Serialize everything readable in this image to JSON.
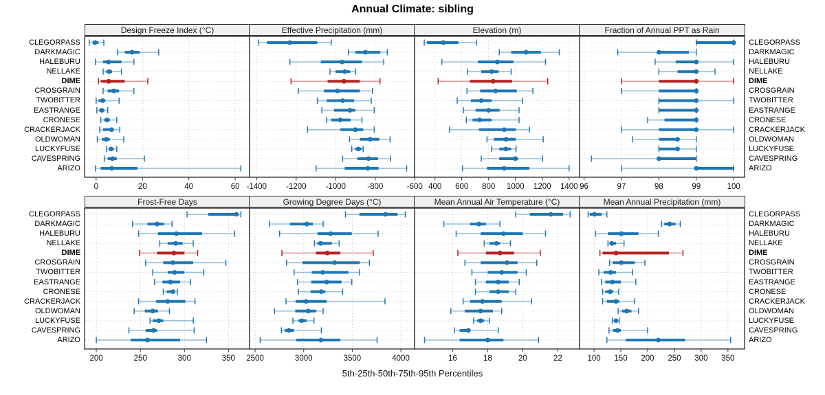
{
  "title": "Annual Climate: sibling",
  "caption": "5th-25th-50th-75th-95th Percentiles",
  "colors": {
    "series": "#1f77b4",
    "series_light": "rgba(31,119,180,0.42)",
    "highlight": "#b22222",
    "highlight_light": "rgba(178,34,34,0.42)",
    "header_bg": "#f0f0f0",
    "panel_border": "#2a2a2a",
    "grid": "#c4c4c4",
    "tick_text": "#111111"
  },
  "chart_data": {
    "type": "dot-whisker",
    "percentile_levels": [
      5,
      25,
      50,
      75,
      95
    ],
    "highlight_site": "DIME",
    "sites": [
      "CLEGORPASS",
      "DARKMAGIC",
      "HALEBURU",
      "NELLAKE",
      "DIME",
      "CROSGRAIN",
      "TWOBITTER",
      "EASTRANGE",
      "CRONESE",
      "CRACKERJACK",
      "OLDWOMAN",
      "LUCKYFUSE",
      "CAVESPRING",
      "ARIZO"
    ],
    "panels": [
      {
        "title": "Design Freeze Index (°C)",
        "ticks": [
          0,
          20,
          40,
          60
        ],
        "xlim": [
          -5,
          66.2
        ],
        "values": [
          [
            -3,
            -1.5,
            -0.5,
            1,
            3.3
          ],
          [
            9.2,
            12.4,
            15.5,
            18.8,
            27
          ],
          [
            -0.3,
            3,
            5.3,
            10.9,
            16.3
          ],
          [
            3,
            4.3,
            5.6,
            6.9,
            10.9
          ],
          [
            1,
            2,
            5.4,
            12.4,
            22.3
          ],
          [
            3,
            5,
            7.6,
            9.9,
            16.3
          ],
          [
            0,
            1,
            2.8,
            4,
            9.9
          ],
          [
            0.3,
            1.3,
            2.5,
            3.5,
            5
          ],
          [
            2,
            3.5,
            4.7,
            5.9,
            8.9
          ],
          [
            1.5,
            3,
            6.7,
            7.4,
            10.2
          ],
          [
            0.5,
            2.5,
            4.3,
            5.9,
            11.9
          ],
          [
            4.5,
            5.4,
            6.4,
            7.6,
            8.9
          ],
          [
            3.5,
            5,
            7.1,
            8.9,
            20.8
          ],
          [
            -0.3,
            2,
            6.7,
            17.8,
            62.4
          ]
        ]
      },
      {
        "title": "Effective Precipitation (mm)",
        "ticks": [
          -1400,
          -1200,
          -1000,
          -800,
          -600
        ],
        "xlim": [
          -1436,
          -601
        ],
        "values": [
          [
            -1390,
            -1348,
            -1232,
            -1093,
            -1023
          ],
          [
            -936,
            -901,
            -850,
            -774,
            -739
          ],
          [
            -1232,
            -1075,
            -968,
            -867,
            -757
          ],
          [
            -1029,
            -1000,
            -954,
            -927,
            -899
          ],
          [
            -1226,
            -1041,
            -958,
            -878,
            -776
          ],
          [
            -1189,
            -1060,
            -991,
            -878,
            -814
          ],
          [
            -1093,
            -1046,
            -965,
            -907,
            -820
          ],
          [
            -1070,
            -1008,
            -928,
            -901,
            -805
          ],
          [
            -1046,
            -1023,
            -977,
            -925,
            -867
          ],
          [
            -1143,
            -977,
            -901,
            -861,
            -805
          ],
          [
            -930,
            -878,
            -826,
            -780,
            -725
          ],
          [
            -919,
            -901,
            -886,
            -869,
            -861
          ],
          [
            -965,
            -890,
            -834,
            -786,
            -722
          ],
          [
            -1099,
            -954,
            -838,
            -783,
            -641
          ]
        ]
      },
      {
        "title": "Elevation (m)",
        "ticks": [
          400,
          600,
          800,
          1000,
          1200,
          1400
        ],
        "xlim": [
          248,
          1478
        ],
        "values": [
          [
            320,
            340,
            463,
            575,
            710
          ],
          [
            880,
            968,
            1079,
            1190,
            1327
          ],
          [
            451,
            720,
            865,
            985,
            1224
          ],
          [
            643,
            745,
            822,
            874,
            968
          ],
          [
            424,
            660,
            834,
            976,
            1241
          ],
          [
            639,
            737,
            851,
            1010,
            1130
          ],
          [
            566,
            668,
            745,
            822,
            1053
          ],
          [
            612,
            703,
            800,
            882,
            1027
          ],
          [
            634,
            680,
            733,
            822,
            1027
          ],
          [
            509,
            728,
            916,
            1002,
            1104
          ],
          [
            788,
            839,
            930,
            1002,
            1207
          ],
          [
            822,
            879,
            928,
            968,
            1005
          ],
          [
            745,
            879,
            998,
            1019,
            1203
          ],
          [
            605,
            788,
            916,
            1104,
            1400
          ]
        ]
      },
      {
        "title": "Fraction of Annual PPT as Rain",
        "ticks": [
          96,
          97,
          98,
          99,
          100
        ],
        "xlim": [
          95.88,
          100.29
        ],
        "values": [
          [
            99,
            99,
            100,
            100,
            100
          ],
          [
            96.9,
            98,
            98,
            98.8,
            99
          ],
          [
            97.9,
            98.45,
            99,
            99,
            100
          ],
          [
            98,
            98.5,
            99,
            99,
            99.5
          ],
          [
            97,
            98,
            99,
            99,
            100
          ],
          [
            97,
            98,
            99,
            99,
            99
          ],
          [
            98,
            98,
            99,
            99,
            100
          ],
          [
            98,
            98,
            99,
            99,
            99
          ],
          [
            97.7,
            98.15,
            99,
            99,
            99
          ],
          [
            97,
            98,
            99,
            99,
            100
          ],
          [
            97.3,
            98,
            98.5,
            98.5,
            99
          ],
          [
            98,
            98,
            98.5,
            98.5,
            99
          ],
          [
            96.2,
            98,
            98,
            99,
            99
          ],
          [
            97,
            99,
            99,
            100,
            100
          ]
        ]
      },
      {
        "title": "Frost-Free Days",
        "ticks": [
          200,
          250,
          300,
          350
        ],
        "xlim": [
          186.7,
          373.9
        ],
        "values": [
          [
            303,
            327,
            359,
            361,
            364
          ],
          [
            241,
            258,
            269,
            277,
            286
          ],
          [
            248,
            270,
            291,
            320,
            357
          ],
          [
            272,
            281,
            290,
            298,
            310
          ],
          [
            249,
            269,
            288,
            300,
            315
          ],
          [
            256,
            276,
            287,
            310,
            347
          ],
          [
            264,
            281,
            289,
            300,
            322
          ],
          [
            266,
            275,
            284,
            295,
            307
          ],
          [
            276,
            280,
            287,
            288,
            292
          ],
          [
            248,
            268,
            281,
            301,
            312
          ],
          [
            243,
            255,
            264,
            270,
            283
          ],
          [
            261,
            264,
            271,
            276,
            310
          ],
          [
            237,
            256,
            265,
            269,
            311
          ],
          [
            200,
            239,
            258,
            295,
            325
          ]
        ]
      },
      {
        "title": "Growing Degree Days (°C)",
        "ticks": [
          2500,
          3000,
          3500,
          4000
        ],
        "xlim": [
          2443,
          4141
        ],
        "values": [
          [
            3430,
            3573,
            3842,
            3967,
            4045
          ],
          [
            2646,
            2858,
            3031,
            3094,
            3200
          ],
          [
            2752,
            3142,
            3276,
            3495,
            3766
          ],
          [
            3110,
            3140,
            3175,
            3290,
            3365
          ],
          [
            2776,
            3125,
            3243,
            3377,
            3715
          ],
          [
            2823,
            2988,
            3318,
            3578,
            3677
          ],
          [
            2901,
            3083,
            3196,
            3460,
            3573
          ],
          [
            2936,
            3078,
            3236,
            3389,
            3495
          ],
          [
            2946,
            3071,
            3182,
            3224,
            3401
          ],
          [
            2818,
            2917,
            3024,
            3236,
            3837
          ],
          [
            2700,
            2913,
            3047,
            3130,
            3200
          ],
          [
            2889,
            2946,
            2981,
            3031,
            3106
          ],
          [
            2771,
            2804,
            2847,
            2899,
            3182
          ],
          [
            2552,
            2922,
            3177,
            3377,
            3755
          ]
        ]
      },
      {
        "title": "Mean Annual Air Temperature (°C)",
        "ticks": [
          16,
          18,
          20,
          22
        ],
        "xlim": [
          13.83,
          23.24
        ],
        "values": [
          [
            19.6,
            20.4,
            21.6,
            22.3,
            22.7
          ],
          [
            15.5,
            17.0,
            17.5,
            17.9,
            18.7
          ],
          [
            16.2,
            17.6,
            18.9,
            20.0,
            21.3
          ],
          [
            17.8,
            18.1,
            18.5,
            18.7,
            19.3
          ],
          [
            16.3,
            17.9,
            18.7,
            19.5,
            21.0
          ],
          [
            16.7,
            17.6,
            19.1,
            19.7,
            20.8
          ],
          [
            17.1,
            18.0,
            18.8,
            19.7,
            20.2
          ],
          [
            17.3,
            17.9,
            18.6,
            19.2,
            19.8
          ],
          [
            17.3,
            18.1,
            18.6,
            19.2,
            19.6
          ],
          [
            16.6,
            17.0,
            17.7,
            18.8,
            20.5
          ],
          [
            15.9,
            16.7,
            17.6,
            18.3,
            18.8
          ],
          [
            17.2,
            17.4,
            17.6,
            17.8,
            18.1
          ],
          [
            16.1,
            16.4,
            16.9,
            17.0,
            18.6
          ],
          [
            14.4,
            16.4,
            18.0,
            18.9,
            20.9
          ]
        ]
      },
      {
        "title": "Mean Annual Precipitation (mm)",
        "ticks": [
          100,
          150,
          200,
          250,
          300,
          350
        ],
        "xlim": [
          73,
          381
        ],
        "values": [
          [
            89,
            92,
            101,
            114,
            124
          ],
          [
            226,
            231,
            241,
            252,
            261
          ],
          [
            103,
            126,
            151,
            183,
            220
          ],
          [
            126,
            129,
            133,
            141,
            156
          ],
          [
            111,
            116,
            141,
            240,
            266
          ],
          [
            129,
            135,
            151,
            176,
            195
          ],
          [
            109,
            118,
            131,
            141,
            172
          ],
          [
            114,
            121,
            134,
            150,
            178
          ],
          [
            116,
            121,
            130,
            136,
            146
          ],
          [
            116,
            124,
            141,
            147,
            176
          ],
          [
            145,
            152,
            161,
            170,
            183
          ],
          [
            134,
            137,
            141,
            144,
            147
          ],
          [
            128,
            135,
            144,
            150,
            200
          ],
          [
            124,
            159,
            220,
            270,
            355
          ]
        ]
      }
    ]
  }
}
